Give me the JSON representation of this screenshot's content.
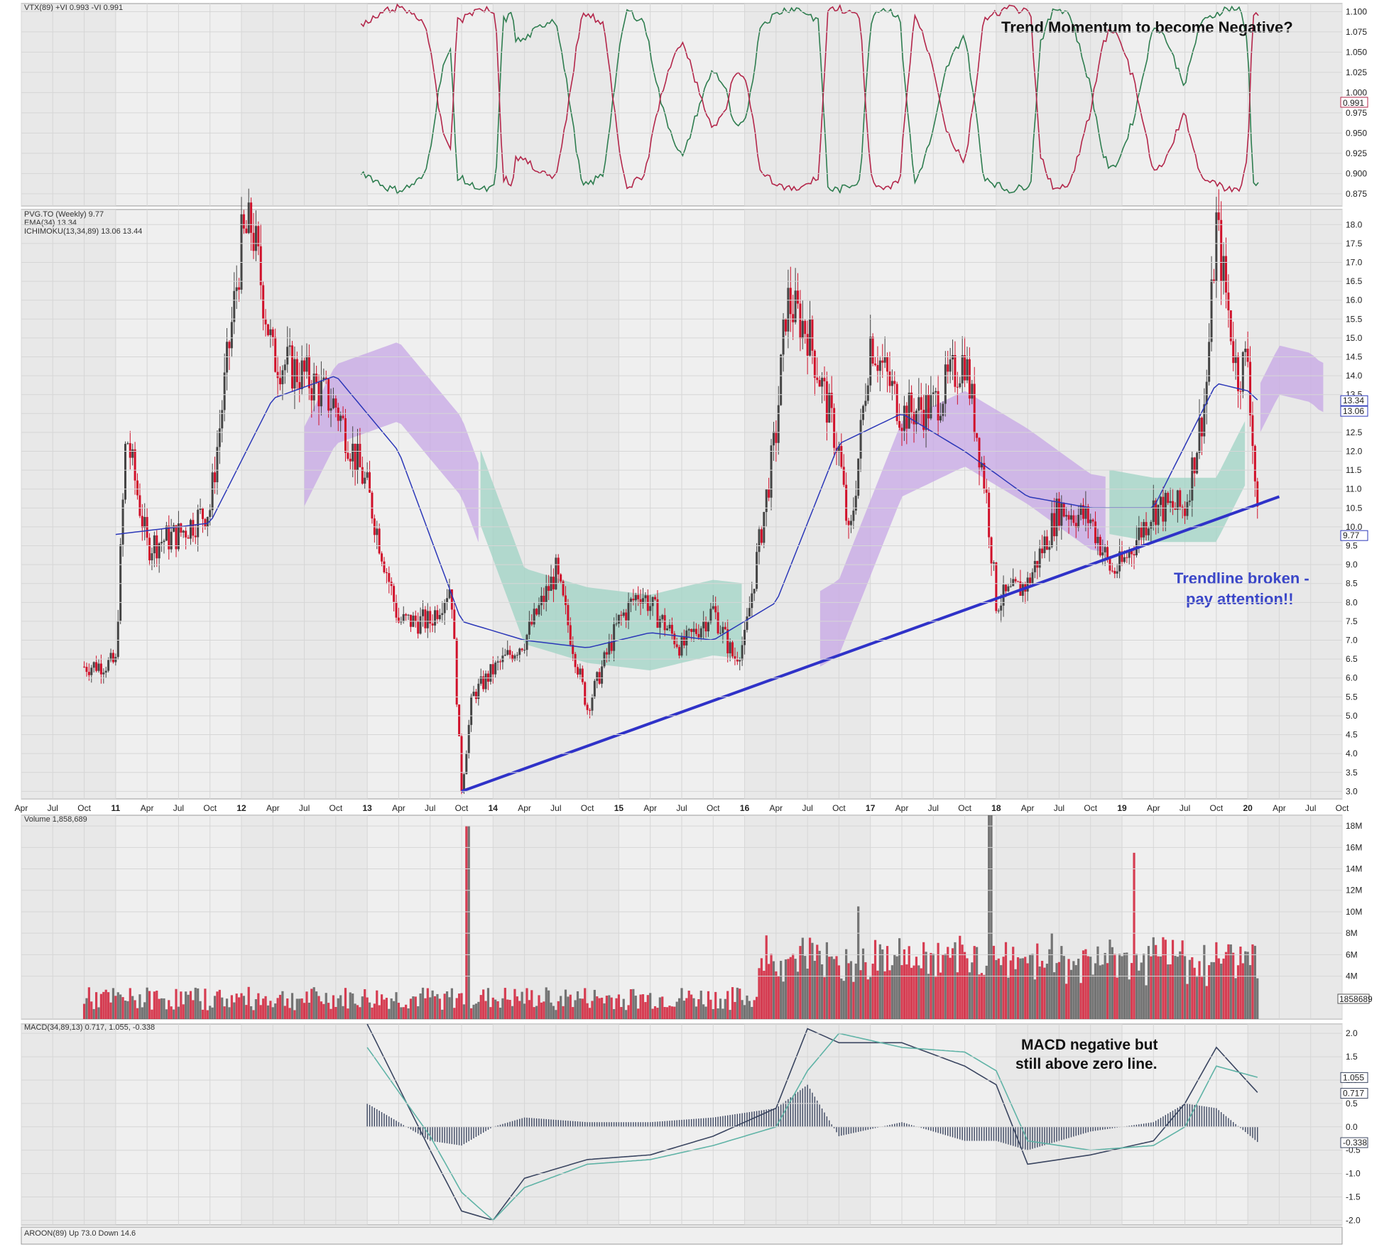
{
  "colors": {
    "panel_bg": "#efefef",
    "shade_bg": "#e2e2e2",
    "grid": "#d6d6d6",
    "up_candle": "#444444",
    "down_candle": "#d0102a",
    "ema": "#2b37b8",
    "cloud_bull": "#9fd3c4",
    "cloud_bear": "#c7a7e6",
    "vi_plus": "#2e7d4f",
    "vi_minus": "#b3264a",
    "trendline": "#2f32c8",
    "macd_line": "#3a4560",
    "signal_line": "#5fb3a6",
    "histogram": "#3c4660",
    "annotation_blue": "#3a46c8"
  },
  "panels": {
    "vtx": {
      "legend": "VTX(89) +VI 0.993 -VI 0.991",
      "ticks": [
        "1.100",
        "1.075",
        "1.050",
        "1.025",
        "1.000",
        "0.975",
        "0.950",
        "0.925",
        "0.900",
        "0.875"
      ],
      "value_badge": "0.991",
      "annotation": "Trend Momentum to become Negative?"
    },
    "price": {
      "legend_line1": "PVG.TO (Weekly) 9.77",
      "legend_line2": "EMA(34) 13.34",
      "legend_line3": "ICHIMOKU(13,34,89) 13.06 13.44",
      "ticks": [
        "18.0",
        "17.5",
        "17.0",
        "16.5",
        "16.0",
        "15.5",
        "15.0",
        "14.5",
        "14.0",
        "13.5",
        "13.0",
        "12.5",
        "12.0",
        "11.5",
        "11.0",
        "10.5",
        "10.0",
        "9.5",
        "9.0",
        "8.5",
        "8.0",
        "7.5",
        "7.0",
        "6.5",
        "6.0",
        "5.5",
        "5.0",
        "4.5",
        "4.0",
        "3.5",
        "3.0"
      ],
      "badges": [
        "13.34",
        "13.06",
        "9.77"
      ],
      "annotation_line1": "Trendline broken -",
      "annotation_line2": "pay attention!!"
    },
    "volume": {
      "legend": "Volume 1,858,689",
      "ticks": [
        "18M",
        "16M",
        "14M",
        "12M",
        "10M",
        "8M",
        "6M",
        "4M"
      ],
      "badge": "1858689"
    },
    "macd": {
      "legend": "MACD(34,89,13) 0.717, 1.055, -0.338",
      "ticks": [
        "2.0",
        "1.5",
        "1.0",
        "0.5",
        "0.0",
        "-0.5",
        "-1.0",
        "-1.5",
        "-2.0"
      ],
      "badges": [
        "1.055",
        "0.717",
        "-0.338"
      ],
      "annotation_line1": "MACD negative but",
      "annotation_line2": "still above zero line."
    },
    "aroon": {
      "legend": "AROON(89) Up 73.0 Down 14.6"
    }
  },
  "x_axis_labels": [
    "Apr",
    "Jul",
    "Oct",
    "11",
    "Apr",
    "Jul",
    "Oct",
    "12",
    "Apr",
    "Jul",
    "Oct",
    "13",
    "Apr",
    "Jul",
    "Oct",
    "14",
    "Apr",
    "Jul",
    "Oct",
    "15",
    "Apr",
    "Jul",
    "Oct",
    "16",
    "Apr",
    "Jul",
    "Oct",
    "17",
    "Apr",
    "Jul",
    "Oct",
    "18",
    "Apr",
    "Jul",
    "Oct",
    "19",
    "Apr",
    "Jul",
    "Oct",
    "20",
    "Apr",
    "Jul",
    "Oct"
  ],
  "chart_data": {
    "type": "line",
    "title": "PVG.TO (Weekly)",
    "x_label_start": "Apr 2010",
    "series": [
      {
        "name": "PVG.TO (Weekly)",
        "x": [
          "2010-10",
          "2011-01",
          "2011-02",
          "2011-04",
          "2011-07",
          "2011-10",
          "2012-01",
          "2012-02",
          "2012-04",
          "2012-07",
          "2012-10",
          "2013-01",
          "2013-04",
          "2013-07",
          "2013-09",
          "2013-10",
          "2013-11",
          "2014-01",
          "2014-04",
          "2014-07",
          "2014-10",
          "2015-01",
          "2015-03",
          "2015-07",
          "2015-10",
          "2015-12",
          "2016-01",
          "2016-04",
          "2016-05",
          "2016-07",
          "2016-10",
          "2016-11",
          "2017-01",
          "2017-04",
          "2017-07",
          "2017-10",
          "2017-12",
          "2018-01",
          "2018-04",
          "2018-07",
          "2018-10",
          "2018-12",
          "2019-01",
          "2019-04",
          "2019-07",
          "2019-09",
          "2019-10",
          "2019-12",
          "2020-01",
          "2020-02"
        ],
        "values": [
          6.3,
          6.4,
          12.5,
          9.5,
          9.8,
          10.5,
          17.5,
          18.0,
          14.5,
          14.0,
          13.2,
          11.0,
          7.5,
          7.5,
          8.5,
          3.0,
          5.5,
          6.2,
          7.0,
          8.8,
          5.2,
          7.5,
          8.3,
          6.8,
          7.8,
          6.5,
          7.0,
          12.5,
          16.0,
          15.2,
          12.0,
          9.5,
          15.0,
          13.0,
          13.2,
          14.5,
          11.0,
          8.0,
          8.5,
          10.5,
          10.2,
          8.8,
          9.0,
          10.5,
          10.5,
          13.5,
          18.0,
          14.0,
          14.5,
          9.77
        ]
      },
      {
        "name": "EMA(34)",
        "x": [
          "2011-01",
          "2011-10",
          "2012-04",
          "2012-10",
          "2013-04",
          "2013-10",
          "2014-04",
          "2014-10",
          "2015-04",
          "2015-10",
          "2016-04",
          "2016-10",
          "2017-04",
          "2017-10",
          "2018-04",
          "2018-10",
          "2019-04",
          "2019-10",
          "2020-01",
          "2020-02"
        ],
        "values": [
          9.8,
          10.1,
          13.4,
          14.0,
          12.0,
          7.5,
          7.0,
          6.8,
          7.2,
          7.0,
          8.0,
          12.2,
          13.0,
          12.0,
          10.8,
          10.5,
          10.5,
          13.8,
          13.6,
          13.34
        ]
      },
      {
        "name": "Trendline",
        "x": [
          "2013-10",
          "2020-04"
        ],
        "values": [
          3.0,
          10.8
        ]
      }
    ],
    "ylim": [
      2.8,
      18.4
    ],
    "vtx": {
      "vi_plus_last": 0.993,
      "vi_minus_last": 0.991,
      "ylim": [
        0.86,
        1.11
      ]
    },
    "volume": {
      "last": 1858689,
      "peaks_millions": [
        18,
        19,
        15.5,
        10.5,
        8.5
      ],
      "ylim": [
        0,
        19
      ]
    },
    "macd": {
      "macd_last": 0.717,
      "signal_last": 1.055,
      "hist_last": -0.338,
      "x": [
        "2013-01",
        "2013-07",
        "2013-10",
        "2014-01",
        "2014-04",
        "2014-10",
        "2015-04",
        "2015-10",
        "2016-04",
        "2016-07",
        "2016-10",
        "2017-04",
        "2017-10",
        "2018-01",
        "2018-04",
        "2018-10",
        "2019-04",
        "2019-07",
        "2019-10",
        "2020-02"
      ],
      "macd": [
        2.2,
        -0.5,
        -1.8,
        -2.0,
        -1.1,
        -0.7,
        -0.6,
        -0.2,
        0.4,
        2.1,
        1.8,
        1.8,
        1.3,
        0.9,
        -0.8,
        -0.6,
        -0.3,
        0.5,
        1.7,
        0.717
      ],
      "signal": [
        1.7,
        -0.2,
        -1.4,
        -2.0,
        -1.3,
        -0.8,
        -0.7,
        -0.4,
        0.0,
        1.2,
        2.0,
        1.7,
        1.6,
        1.2,
        -0.3,
        -0.5,
        -0.4,
        0.0,
        1.3,
        1.055
      ],
      "ylim": [
        -2.1,
        2.2
      ]
    },
    "grid": true
  }
}
